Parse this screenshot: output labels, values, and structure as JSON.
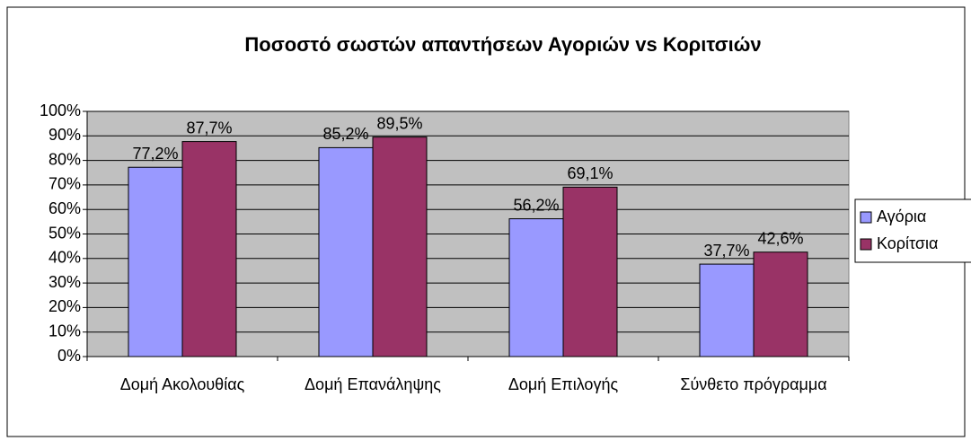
{
  "chart_data": {
    "type": "bar",
    "title": "Ποσοστό σωστών απαντήσεων Αγοριών vs Κοριτσιών",
    "categories": [
      "Δομή Ακολουθίας",
      "Δομή Επανάληψης",
      "Δομή Επιλογής",
      "Σύνθετο πρόγραμμα"
    ],
    "series": [
      {
        "name": "Αγόρια",
        "color": "#9999ff",
        "values": [
          77.2,
          85.2,
          56.2,
          37.7
        ],
        "value_labels": [
          "77,2%",
          "85,2%",
          "56,2%",
          "37,7%"
        ]
      },
      {
        "name": "Κορίτσια",
        "color": "#993366",
        "values": [
          87.7,
          89.5,
          69.1,
          42.6
        ],
        "value_labels": [
          "87,7%",
          "89,5%",
          "69,1%",
          "42,6%"
        ]
      }
    ],
    "ylim": [
      0,
      100
    ],
    "yticks": [
      {
        "value": 0,
        "label": "0%"
      },
      {
        "value": 10,
        "label": "10%"
      },
      {
        "value": 20,
        "label": "20%"
      },
      {
        "value": 30,
        "label": "30%"
      },
      {
        "value": 40,
        "label": "40%"
      },
      {
        "value": 50,
        "label": "50%"
      },
      {
        "value": 60,
        "label": "60%"
      },
      {
        "value": 70,
        "label": "70%"
      },
      {
        "value": 80,
        "label": "80%"
      },
      {
        "value": 90,
        "label": "90%"
      },
      {
        "value": 100,
        "label": "100%"
      }
    ],
    "grid": true,
    "legend": "right",
    "plot_background": "#c0c0c0"
  }
}
